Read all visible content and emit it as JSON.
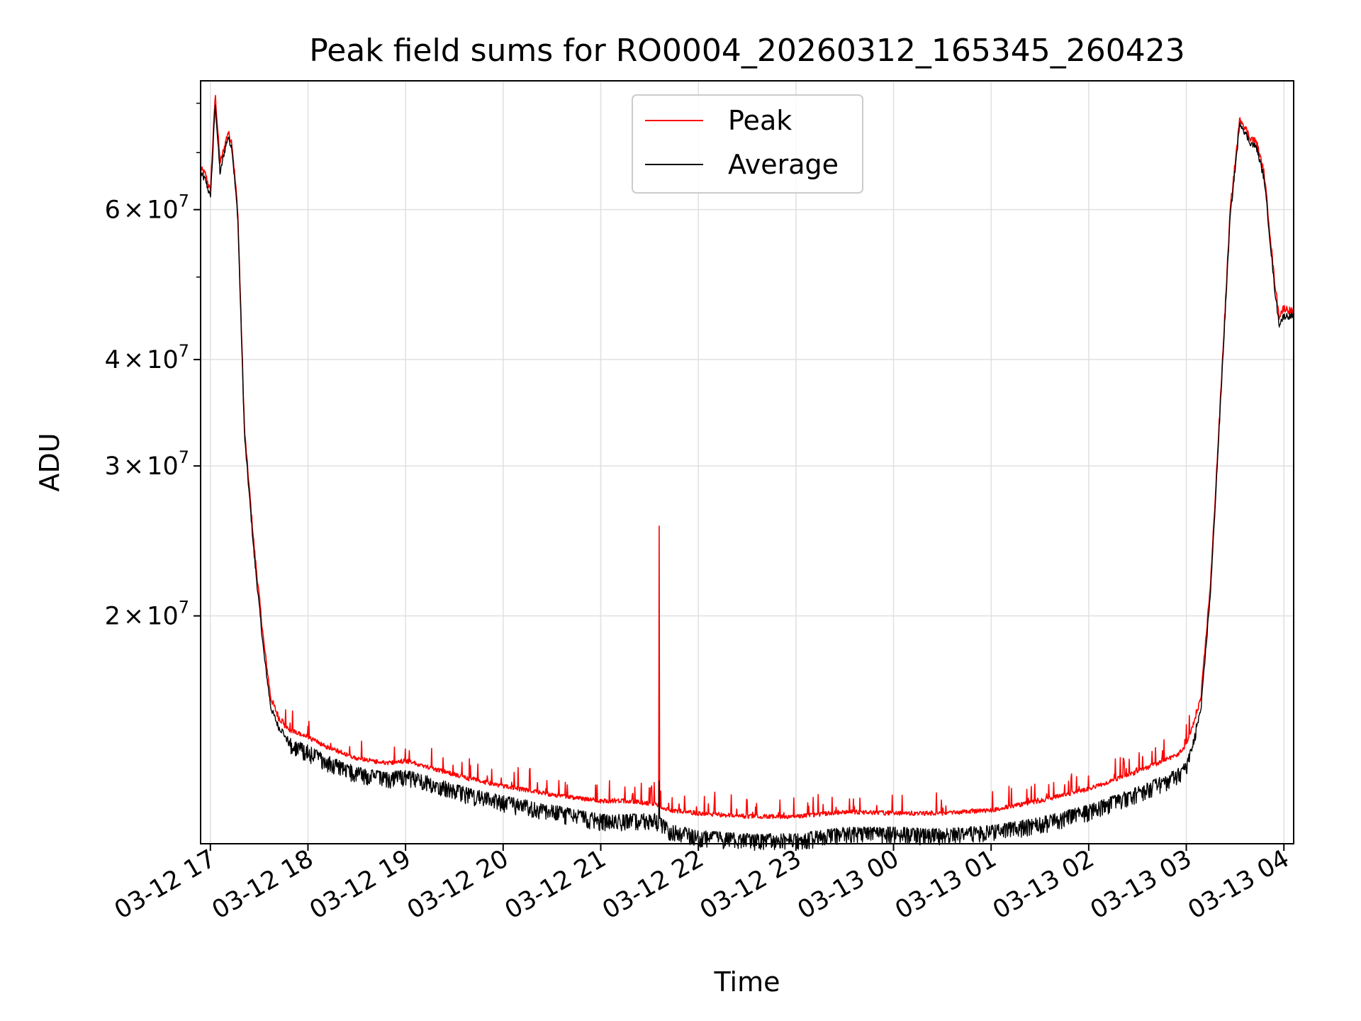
{
  "chart_data": {
    "type": "line",
    "title": "Peak field sums for RO0004_20260312_165345_260423",
    "xlabel": "Time",
    "ylabel": "ADU",
    "yscale": "log",
    "ylim": [
      10800000,
      85000000
    ],
    "xlim_hours": [
      16.9,
      28.1
    ],
    "grid": true,
    "legend_position": "top-center",
    "colors": {
      "peak": "#ff0000",
      "average": "#000000",
      "grid": "#e0e0e0"
    },
    "x_ticks": [
      {
        "h": 17,
        "label": "03-12 17"
      },
      {
        "h": 18,
        "label": "03-12 18"
      },
      {
        "h": 19,
        "label": "03-12 19"
      },
      {
        "h": 20,
        "label": "03-12 20"
      },
      {
        "h": 21,
        "label": "03-12 21"
      },
      {
        "h": 22,
        "label": "03-12 22"
      },
      {
        "h": 23,
        "label": "03-12 23"
      },
      {
        "h": 24,
        "label": "03-13 00"
      },
      {
        "h": 25,
        "label": "03-13 01"
      },
      {
        "h": 26,
        "label": "03-13 02"
      },
      {
        "h": 27,
        "label": "03-13 03"
      },
      {
        "h": 28,
        "label": "03-13 04"
      }
    ],
    "y_ticks": [
      {
        "value": 20000000,
        "mantissa": "2",
        "times": "×",
        "base": "10",
        "exp": "7"
      },
      {
        "value": 30000000,
        "mantissa": "3",
        "times": "×",
        "base": "10",
        "exp": "7"
      },
      {
        "value": 40000000,
        "mantissa": "4",
        "times": "×",
        "base": "10",
        "exp": "7"
      },
      {
        "value": 60000000,
        "mantissa": "6",
        "times": "×",
        "base": "10",
        "exp": "7"
      }
    ],
    "y_minor_ticks": [
      50000000,
      70000000,
      80000000
    ],
    "series": [
      {
        "name": "Peak",
        "x_hours": [
          16.9,
          16.95,
          17.0,
          17.02,
          17.05,
          17.1,
          17.13,
          17.18,
          17.22,
          17.28,
          17.35,
          17.45,
          17.55,
          17.62,
          17.7,
          17.8,
          18.0,
          18.2,
          18.5,
          18.8,
          19.0,
          19.3,
          19.6,
          20.0,
          20.5,
          21.0,
          21.3,
          21.55,
          21.7,
          22.0,
          22.5,
          23.0,
          23.5,
          24.0,
          24.5,
          25.0,
          25.5,
          26.0,
          26.5,
          26.9,
          27.0,
          27.15,
          27.25,
          27.35,
          27.45,
          27.55,
          27.65,
          27.72,
          27.8,
          27.9,
          27.95,
          28.0,
          28.1
        ],
        "values": [
          67000000,
          66000000,
          63000000,
          70000000,
          82000000,
          68000000,
          70000000,
          74000000,
          72000000,
          60000000,
          33000000,
          24000000,
          18500000,
          16000000,
          15200000,
          14800000,
          14500000,
          14100000,
          13700000,
          13500000,
          13600000,
          13300000,
          13000000,
          12700000,
          12400000,
          12200000,
          12200000,
          12100000,
          11900000,
          11800000,
          11700000,
          11700000,
          11850000,
          11800000,
          11800000,
          11900000,
          12200000,
          12600000,
          13200000,
          13800000,
          14200000,
          16000000,
          22000000,
          36000000,
          60000000,
          77000000,
          73000000,
          72000000,
          66000000,
          50000000,
          45000000,
          46000000,
          45500000
        ]
      },
      {
        "name": "Average",
        "x_hours": [
          16.9,
          16.95,
          17.0,
          17.02,
          17.05,
          17.1,
          17.13,
          17.18,
          17.22,
          17.28,
          17.35,
          17.45,
          17.55,
          17.62,
          17.7,
          17.8,
          18.0,
          18.2,
          18.5,
          18.8,
          19.0,
          19.3,
          19.6,
          20.0,
          20.5,
          21.0,
          21.3,
          21.55,
          21.7,
          22.0,
          22.5,
          23.0,
          23.5,
          24.0,
          24.5,
          25.0,
          25.5,
          26.0,
          26.5,
          26.9,
          27.0,
          27.15,
          27.25,
          27.35,
          27.45,
          27.55,
          27.65,
          27.72,
          27.8,
          27.9,
          27.95,
          28.0,
          28.1
        ],
        "values": [
          66000000,
          65000000,
          62000000,
          68000000,
          80000000,
          66000000,
          69000000,
          73000000,
          71000000,
          59000000,
          32500000,
          23500000,
          18000000,
          15600000,
          14800000,
          14400000,
          14100000,
          13700000,
          13300000,
          13100000,
          13200000,
          12900000,
          12600000,
          12300000,
          12000000,
          11700000,
          11700000,
          11750000,
          11400000,
          11200000,
          11100000,
          11100000,
          11300000,
          11300000,
          11250000,
          11350000,
          11600000,
          12000000,
          12600000,
          13200000,
          13500000,
          15500000,
          21500000,
          35500000,
          59000000,
          76000000,
          72000000,
          71000000,
          65000000,
          49000000,
          44000000,
          45000000,
          45000000
        ]
      }
    ],
    "annotations": [
      {
        "type": "spike",
        "series": "Peak",
        "x_hour": 21.6,
        "value": 25500000
      }
    ]
  }
}
